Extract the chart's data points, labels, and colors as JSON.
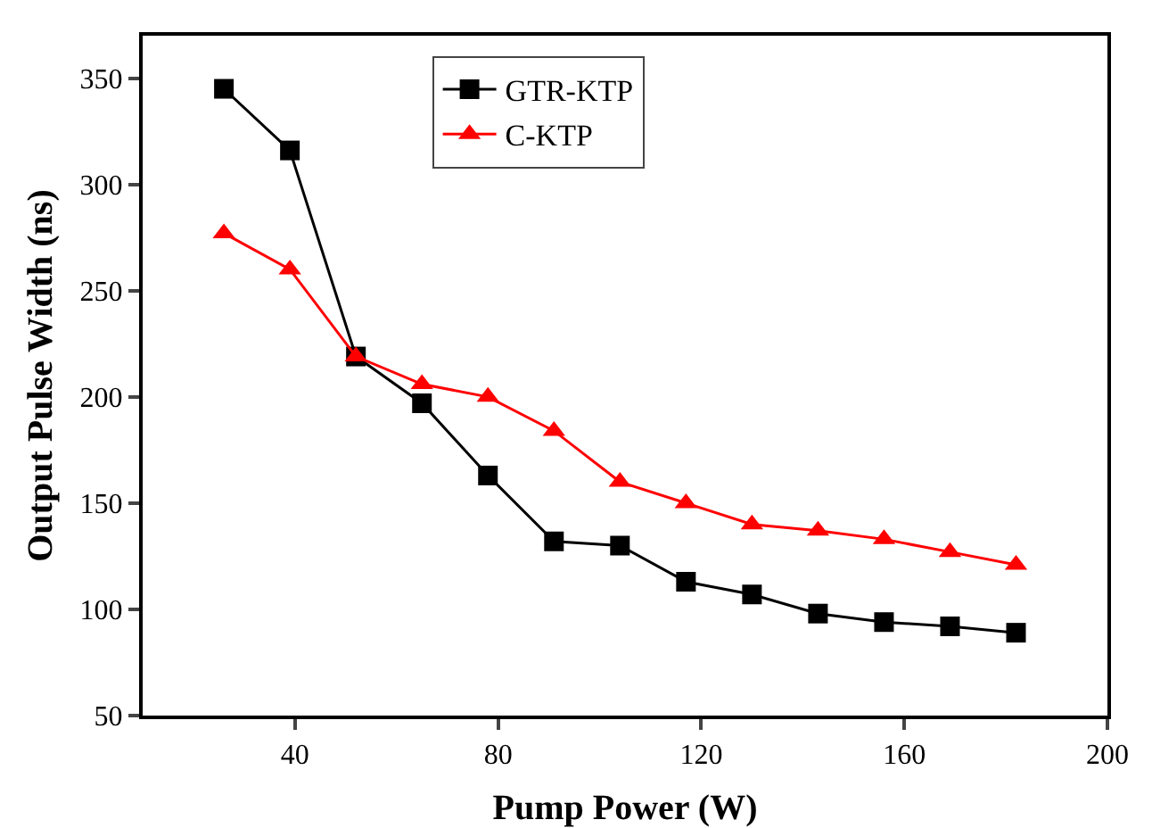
{
  "chart_data": {
    "type": "line",
    "xlabel": "Pump Power (W)",
    "ylabel": "Output Pulse Width (ns)",
    "x": [
      26,
      39,
      52,
      65,
      78,
      91,
      104,
      117,
      130,
      143,
      156,
      169,
      182
    ],
    "series": [
      {
        "name": "GTR-KTP",
        "color": "#000000",
        "marker": "square",
        "values": [
          345,
          316,
          219,
          197,
          163,
          132,
          130,
          113,
          107,
          98,
          94,
          92,
          89
        ]
      },
      {
        "name": "C-KTP",
        "color": "#ff0000",
        "marker": "triangle",
        "values": [
          277,
          260,
          219,
          206,
          200,
          184,
          160,
          150,
          140,
          137,
          133,
          127,
          121
        ]
      }
    ],
    "xlim": [
      10,
      200
    ],
    "xticks": [
      40,
      80,
      120,
      160,
      200
    ],
    "ylim": [
      50,
      370
    ],
    "yticks": [
      50,
      100,
      150,
      200,
      250,
      300,
      350
    ],
    "grid": false,
    "legend": "top",
    "line_style": "solid"
  }
}
